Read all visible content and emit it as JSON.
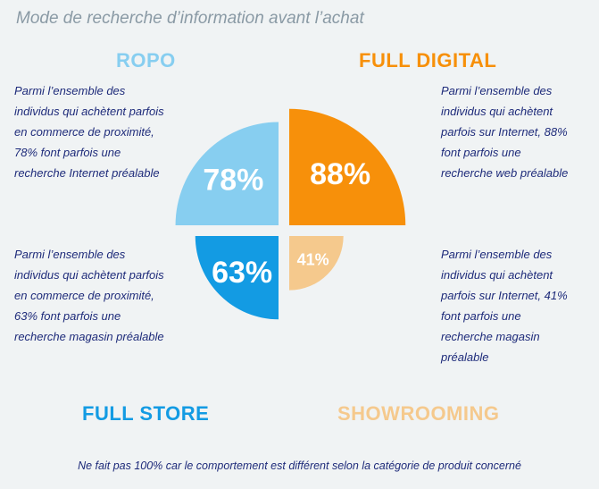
{
  "title": "Mode de recherche d’information avant l’achat",
  "chart_data": {
    "type": "pie",
    "categories": [
      "ROPO",
      "FULL DIGITAL",
      "FULL STORE",
      "SHOWROOMING"
    ],
    "values": [
      78,
      88,
      63,
      41
    ],
    "value_labels": [
      "78%",
      "88%",
      "63%",
      "41%"
    ],
    "colors": [
      "#87cef0",
      "#f7900a",
      "#139be3",
      "#f5c98d"
    ]
  },
  "quadrants": {
    "ropo": {
      "label": "ROPO",
      "description": "Parmi l’ensemble des individus qui achètent parfois en commerce de proximité, 78% font parfois une recherche Internet préalable"
    },
    "full_digital": {
      "label": "FULL DIGITAL",
      "description": "Parmi l’ensemble des individus qui achètent parfois sur Internet, 88% font parfois une recherche web préalable"
    },
    "full_store": {
      "label": "FULL STORE",
      "description": "Parmi l’ensemble des individus qui achètent parfois en commerce de proximité, 63% font parfois une recherche magasin préalable"
    },
    "showrooming": {
      "label": "SHOWROOMING",
      "description": "Parmi l’ensemble des individus qui achètent parfois sur Internet, 41% font parfois une recherche magasin préalable"
    }
  },
  "footnote": "Ne fait pas 100% car le comportement est différent selon la catégorie de produit concerné"
}
